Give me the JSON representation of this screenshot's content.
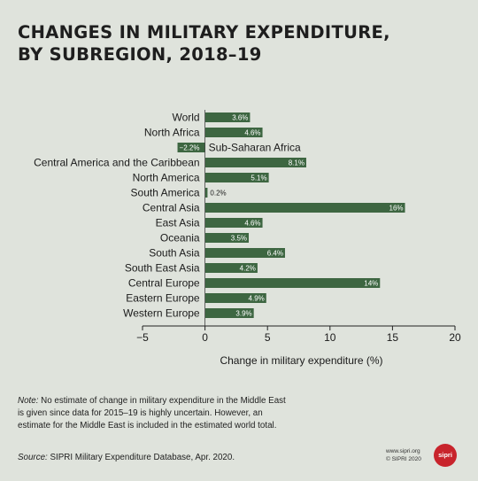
{
  "title_lines": [
    "CHANGES IN MILITARY EXPENDITURE,",
    "BY SUBREGION, 2018–19"
  ],
  "note_label": "Note:",
  "note_text": " No estimate of change in military expenditure in the Middle East is given since data for 2015–19 is highly uncertain. However, an estimate for the Middle East is included in the estimated world total.",
  "source_label": "Source:",
  "source_text": " SIPRI Military Expenditure Database, Apr. 2020.",
  "credits": [
    "www.sipri.org",
    "© SIPRI 2020"
  ],
  "logo_text": "sipri",
  "colors": {
    "bar": "#3d6641",
    "background": "#dfe3dc",
    "logo": "#c8242c"
  },
  "chart_data": {
    "type": "bar",
    "orientation": "horizontal",
    "categories": [
      "World",
      "North Africa",
      "Sub-Saharan Africa",
      "Central America and the Caribbean",
      "North America",
      "South America",
      "Central Asia",
      "East Asia",
      "Oceania",
      "South Asia",
      "South East Asia",
      "Central Europe",
      "Eastern Europe",
      "Western Europe"
    ],
    "values": [
      3.6,
      4.6,
      -2.2,
      8.1,
      5.1,
      0.2,
      16,
      4.6,
      3.5,
      6.4,
      4.2,
      14,
      4.9,
      3.9
    ],
    "value_labels": [
      "3.6%",
      "4.6%",
      "−2.2%",
      "8.1%",
      "5.1%",
      "0.2%",
      "16%",
      "4.6%",
      "3.5%",
      "6.4%",
      "4.2%",
      "14%",
      "4.9%",
      "3.9%"
    ],
    "xlabel": "Change in military expenditure (%)",
    "xlim": [
      -5,
      20
    ],
    "xticks": [
      -5,
      0,
      5,
      10,
      15,
      20
    ],
    "xtick_labels": [
      "−5",
      "0",
      "5",
      "10",
      "15",
      "20"
    ],
    "grid": false
  }
}
